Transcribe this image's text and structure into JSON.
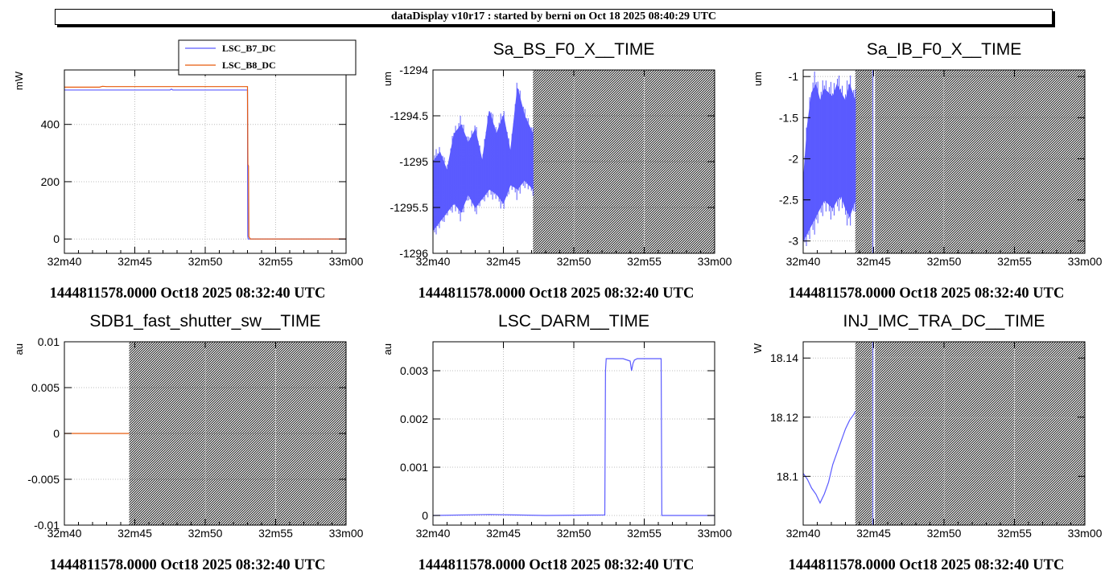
{
  "header": {
    "title": "dataDisplay v10r17 : started by berni on Oct 18 2025 08:40:29 UTC"
  },
  "colors": {
    "blue": "#5b5bff",
    "orange": "#e85a0c",
    "grid": "#bdbdbd",
    "hatch": "#000000"
  },
  "x_axis": {
    "ticks": [
      0,
      5,
      10,
      15,
      20
    ],
    "tick_labels": [
      "32m40",
      "32m45",
      "32m50",
      "32m55",
      "33m00"
    ],
    "range": [
      0,
      20
    ]
  },
  "chart_data": [
    {
      "type": "line",
      "title": "",
      "ylabel": "mW",
      "xlabel": "1444811578.0000 Oct18 2025 08:32:40 UTC",
      "ylim": [
        -50,
        590
      ],
      "yticks": [
        0,
        200,
        400
      ],
      "ytick_labels": [
        "0",
        "200",
        "400"
      ],
      "legend": {
        "placement": "top-center",
        "entries": [
          "LSC_B7_DC",
          "LSC_B8_DC"
        ]
      },
      "hatched_from": null,
      "series": [
        {
          "name": "LSC_B7_DC",
          "color": "orange_blue_0",
          "style": "blue",
          "x": [
            0,
            7.5,
            7.6,
            7.7,
            7.8,
            13.0,
            13.02,
            13.05,
            20
          ],
          "y": [
            520,
            520,
            523,
            520,
            520,
            520,
            10,
            0,
            0
          ]
        },
        {
          "name": "LSC_B8_DC",
          "style": "orange",
          "x": [
            0,
            2.5,
            2.7,
            3.0,
            13.0,
            13.03,
            13.07,
            13.1,
            13.2,
            20
          ],
          "y": [
            530,
            530,
            533,
            532,
            532,
            260,
            255,
            8,
            0,
            0
          ]
        }
      ]
    },
    {
      "type": "line",
      "title": "Sa_BS_F0_X__TIME",
      "ylabel": "um",
      "xlabel": "1444811578.0000 Oct18 2025 08:32:40 UTC",
      "ylim": [
        -1296,
        -1294
      ],
      "yticks": [
        -1296,
        -1295.5,
        -1295,
        -1294.5,
        -1294
      ],
      "ytick_labels": [
        "-1296",
        "-1295.5",
        "-1295",
        "-1294.5",
        "-1294"
      ],
      "hatched_from": 7.1,
      "band": {
        "x": [
          0,
          0.5,
          1,
          1.5,
          2,
          2.5,
          3,
          3.5,
          4,
          4.5,
          5,
          5.5,
          6,
          6.5,
          7.1
        ],
        "upper": [
          -1295.0,
          -1294.9,
          -1295.1,
          -1294.7,
          -1294.6,
          -1294.8,
          -1294.65,
          -1295.0,
          -1294.45,
          -1294.7,
          -1294.5,
          -1294.9,
          -1294.2,
          -1294.5,
          -1294.7
        ],
        "lower": [
          -1295.75,
          -1295.65,
          -1295.55,
          -1295.45,
          -1295.55,
          -1295.35,
          -1295.5,
          -1295.4,
          -1295.3,
          -1295.35,
          -1295.45,
          -1295.25,
          -1295.3,
          -1295.2,
          -1295.3
        ]
      }
    },
    {
      "type": "line",
      "title": "Sa_IB_F0_X__TIME",
      "ylabel": "um",
      "xlabel": "1444811578.0000 Oct18 2025 08:32:40 UTC",
      "ylim": [
        -3.15,
        -0.92
      ],
      "yticks": [
        -3,
        -2.5,
        -2,
        -1.5,
        -1
      ],
      "ytick_labels": [
        "-3",
        "-2.5",
        "-2",
        "-1.5",
        "-1"
      ],
      "hatched_from": 3.7,
      "gap": [
        4.9,
        5.1
      ],
      "band": {
        "x": [
          0,
          0.3,
          0.6,
          0.9,
          1.2,
          1.5,
          1.8,
          2.1,
          2.4,
          2.7,
          3.0,
          3.3,
          3.7
        ],
        "upper": [
          -2.3,
          -1.6,
          -1.2,
          -1.1,
          -1.3,
          -1.15,
          -1.2,
          -1.25,
          -1.1,
          -1.2,
          -1.3,
          -1.1,
          -1.3
        ],
        "lower": [
          -3.0,
          -2.9,
          -2.8,
          -2.7,
          -2.6,
          -2.5,
          -2.55,
          -2.6,
          -2.5,
          -2.45,
          -2.6,
          -2.7,
          -2.5
        ]
      }
    },
    {
      "type": "line",
      "title": "SDB1_fast_shutter_sw__TIME",
      "ylabel": "au",
      "xlabel": "1444811578.0000 Oct18 2025 08:32:40 UTC",
      "ylim": [
        -0.01,
        0.01
      ],
      "yticks": [
        -0.01,
        -0.005,
        0,
        0.005,
        0.01
      ],
      "ytick_labels": [
        "-0.01",
        "-0.005",
        "0",
        "0.005",
        "0.01"
      ],
      "hatched_from": 4.6,
      "series": [
        {
          "style": "orange",
          "x": [
            0,
            4.6
          ],
          "y": [
            0,
            0
          ]
        }
      ]
    },
    {
      "type": "line",
      "title": "LSC_DARM__TIME",
      "ylabel": "au",
      "xlabel": "1444811578.0000 Oct18 2025 08:32:40 UTC",
      "ylim": [
        -0.0002,
        0.0036
      ],
      "yticks": [
        0,
        0.001,
        0.002,
        0.003
      ],
      "ytick_labels": [
        "0",
        "0.001",
        "0.002",
        "0.003"
      ],
      "hatched_from": null,
      "series": [
        {
          "style": "blue",
          "x": [
            0,
            4,
            8,
            12.2,
            12.25,
            12.3,
            13.5,
            14.0,
            14.1,
            14.2,
            14.3,
            14.5,
            16.2,
            16.25,
            20
          ],
          "y": [
            0,
            2e-05,
            0,
            1e-05,
            0.003,
            0.00325,
            0.00325,
            0.0032,
            0.003,
            0.00315,
            0.00322,
            0.00325,
            0.00325,
            0,
            0
          ]
        }
      ]
    },
    {
      "type": "line",
      "title": "INJ_IMC_TRA_DC__TIME",
      "ylabel": "W",
      "xlabel": "1444811578.0000 Oct18 2025 08:32:40 UTC",
      "ylim": [
        18.0835,
        18.1455
      ],
      "yticks": [
        18.1,
        18.12,
        18.14
      ],
      "ytick_labels": [
        "18.1",
        "18.12",
        "18.14"
      ],
      "hatched_from": 3.7,
      "gap": [
        4.9,
        5.1
      ],
      "series": [
        {
          "style": "blue",
          "x": [
            0,
            0.3,
            0.6,
            0.9,
            1.2,
            1.5,
            1.8,
            2.1,
            2.4,
            2.7,
            3.0,
            3.3,
            3.6,
            3.7
          ],
          "y": [
            18.101,
            18.099,
            18.096,
            18.094,
            18.091,
            18.094,
            18.098,
            18.104,
            18.108,
            18.112,
            18.116,
            18.119,
            18.121,
            18.122
          ]
        }
      ]
    }
  ]
}
